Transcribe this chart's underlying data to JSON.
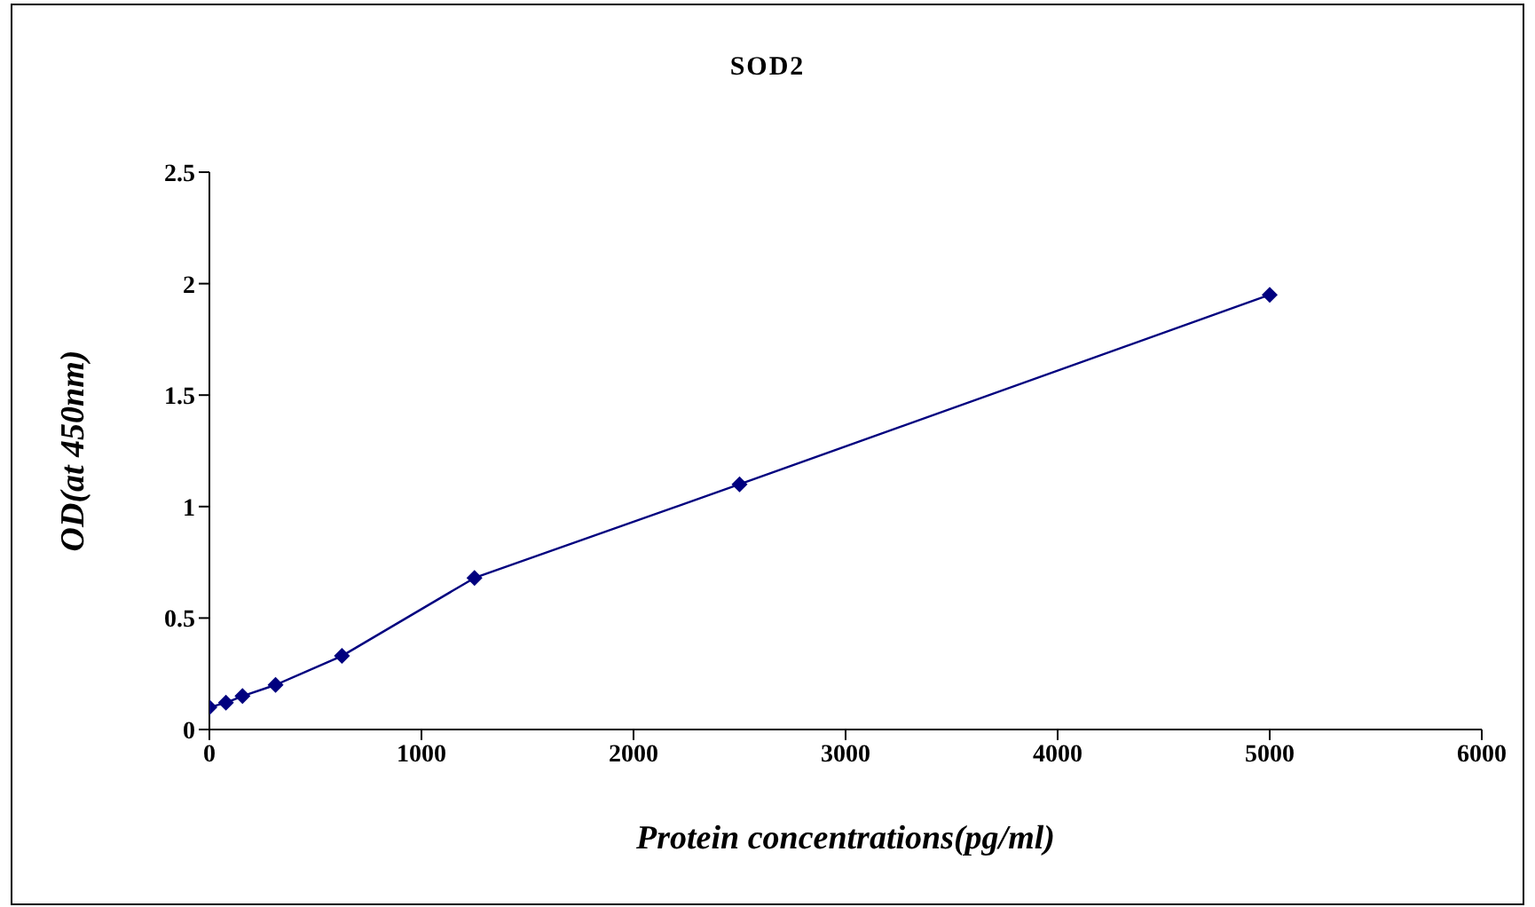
{
  "chart_data": {
    "type": "line",
    "title": "SOD2",
    "xlabel": "Protein concentrations(pg/ml)",
    "ylabel": "OD(at 450nm)",
    "x": [
      0,
      78,
      156,
      312,
      625,
      1250,
      2500,
      5000
    ],
    "series": [
      {
        "color": "#00007f",
        "values": [
          0.1,
          0.12,
          0.15,
          0.2,
          0.33,
          0.68,
          1.1,
          1.95
        ]
      }
    ],
    "xlim": [
      0,
      6000
    ],
    "xticks": [
      0,
      1000,
      2000,
      3000,
      4000,
      5000,
      6000
    ],
    "ylim": [
      0,
      2.5
    ],
    "yticks": [
      0,
      0.5,
      1,
      1.5,
      2,
      2.5
    ],
    "grid": false,
    "legend": false,
    "marker": "diamond",
    "line_style": "solid"
  }
}
